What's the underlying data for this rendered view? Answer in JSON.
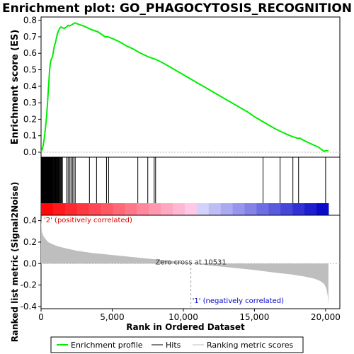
{
  "chart_data": {
    "type": "line",
    "title": "Enrichment plot: GO_PHAGOCYTOSIS_RECOGNITION",
    "top_panel": {
      "ylabel": "Enrichment score (ES)",
      "ylim": [
        -0.03,
        0.82
      ],
      "yticks": [
        "0.0",
        "0.1",
        "0.2",
        "0.3",
        "0.4",
        "0.5",
        "0.6",
        "0.7",
        "0.8"
      ],
      "ytick_values": [
        0.0,
        0.1,
        0.2,
        0.3,
        0.4,
        0.5,
        0.6,
        0.7,
        0.8
      ],
      "series_name": "Enrichment profile",
      "color": "#00ee00",
      "x": [
        0,
        80,
        150,
        220,
        300,
        350,
        400,
        450,
        500,
        550,
        600,
        650,
        700,
        750,
        800,
        850,
        900,
        950,
        1000,
        1050,
        1100,
        1150,
        1200,
        1300,
        1400,
        1500,
        1600,
        1700,
        1800,
        1900,
        2000,
        2100,
        2200,
        2300,
        2400,
        2500,
        3000,
        3500,
        4000,
        4500,
        4700,
        5000,
        5500,
        6000,
        6500,
        7000,
        7500,
        8000,
        8500,
        9000,
        9500,
        10000,
        10500,
        11000,
        11500,
        12000,
        12500,
        13000,
        13500,
        14000,
        14500,
        15000,
        15500,
        16000,
        16500,
        17000,
        17500,
        18000,
        18200,
        18500,
        19000,
        19500,
        19900,
        20000,
        20200
      ],
      "y": [
        0.0,
        0.02,
        0.04,
        0.08,
        0.14,
        0.18,
        0.23,
        0.29,
        0.36,
        0.43,
        0.5,
        0.54,
        0.56,
        0.57,
        0.58,
        0.6,
        0.63,
        0.65,
        0.66,
        0.68,
        0.7,
        0.72,
        0.73,
        0.75,
        0.76,
        0.755,
        0.75,
        0.755,
        0.76,
        0.77,
        0.765,
        0.77,
        0.775,
        0.78,
        0.785,
        0.78,
        0.765,
        0.745,
        0.73,
        0.7,
        0.7,
        0.69,
        0.67,
        0.645,
        0.625,
        0.6,
        0.58,
        0.565,
        0.545,
        0.52,
        0.495,
        0.47,
        0.445,
        0.42,
        0.395,
        0.37,
        0.345,
        0.32,
        0.295,
        0.27,
        0.245,
        0.215,
        0.19,
        0.165,
        0.14,
        0.12,
        0.1,
        0.085,
        0.085,
        0.07,
        0.05,
        0.03,
        0.005,
        0.01,
        0.01
      ]
    },
    "hits_panel": {
      "series_name": "Hits",
      "hit_ranks": [
        30,
        60,
        90,
        120,
        150,
        180,
        210,
        240,
        270,
        300,
        330,
        360,
        390,
        420,
        450,
        480,
        510,
        540,
        570,
        600,
        630,
        660,
        690,
        720,
        750,
        780,
        820,
        860,
        900,
        940,
        980,
        1020,
        1060,
        1100,
        1140,
        1180,
        1220,
        1260,
        1300,
        1350,
        1400,
        1450,
        1500,
        1800,
        1900,
        2000,
        2100,
        2200,
        2300,
        2400,
        3400,
        3900,
        4600,
        4750,
        6800,
        7500,
        7950,
        8050,
        15600,
        16800,
        17700,
        18100,
        20000
      ]
    },
    "bottom_panel": {
      "ylabel": "Ranked list metric (Signal2Noise)",
      "xlabel": "Rank in Ordered Dataset",
      "series_name": "Ranking metric scores",
      "ylim": [
        -0.42,
        0.45
      ],
      "yticks": [
        "0.4",
        "0.2",
        "0.0",
        "-0.2",
        "-0.4"
      ],
      "ytick_values": [
        0.4,
        0.2,
        0.0,
        -0.2,
        -0.4
      ],
      "xlim": [
        0,
        21000
      ],
      "xticks": [
        "0",
        "5,000",
        "10,000",
        "15,000",
        "20,000"
      ],
      "xtick_values": [
        0,
        5000,
        10000,
        15000,
        20000
      ],
      "metric_x": [
        0,
        50,
        150,
        300,
        500,
        800,
        1200,
        1800,
        2500,
        3500,
        5000,
        6500,
        8000,
        9500,
        10531,
        12000,
        13500,
        15000,
        16500,
        17500,
        18500,
        19200,
        19600,
        19900,
        20050,
        20150,
        20200
      ],
      "metric_y": [
        0.42,
        0.3,
        0.26,
        0.23,
        0.2,
        0.18,
        0.16,
        0.14,
        0.12,
        0.1,
        0.08,
        0.06,
        0.04,
        0.02,
        0.0,
        -0.02,
        -0.04,
        -0.06,
        -0.085,
        -0.1,
        -0.12,
        -0.14,
        -0.16,
        -0.19,
        -0.23,
        -0.3,
        -0.38
      ],
      "zero_cross_rank": 10531,
      "zero_cross_label": "Zero cross at 10531",
      "positive_label": "'2' (positively correlated)",
      "negative_label": "'1' (negatively correlated)"
    },
    "total_ranks": 20200,
    "legend": {
      "placement": "bottom",
      "items": [
        "Enrichment profile",
        "Hits",
        "Ranking metric scores"
      ]
    },
    "colors": {
      "es_line": "#00ee00",
      "hits": "#000000",
      "metric_fill": "#bebebe",
      "positive_label": "#dd0000",
      "negative_label": "#0000cc"
    }
  }
}
